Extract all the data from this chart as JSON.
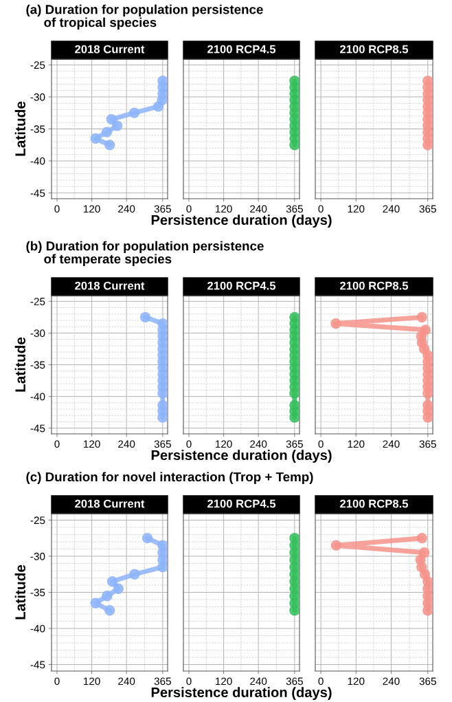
{
  "chart_data": [
    {
      "type": "line",
      "title": "2018 Current",
      "ylabel": "Latitude",
      "annotations": [
        "(a) Duration for population persistence\n     of tropical species"
      ],
      "xlim": [
        -19,
        382
      ],
      "ylim": [
        -45.9,
        -24.1
      ],
      "xticks": [
        0,
        120,
        240,
        365
      ],
      "yticks": [
        -25,
        -30,
        -35,
        -40,
        -45
      ],
      "grid": true,
      "marker": "circle",
      "line_style": "solid",
      "series": [
        {
          "color": "#8db4fa",
          "x": [
            365,
            365,
            365,
            363,
            350,
            267,
            188,
            208,
            172,
            133,
            182
          ],
          "values": [
            -27.5,
            -28.5,
            -29.5,
            -30.5,
            -31.5,
            -32.5,
            -33.5,
            -34.5,
            -35.5,
            -36.5,
            -37.5
          ]
        }
      ]
    },
    {
      "type": "line",
      "title": "2100 RCP4.5",
      "xlabel": "Persistence duration (days)",
      "xlim": [
        -19,
        382
      ],
      "ylim": [
        -45.9,
        -24.1
      ],
      "xticks": [
        0,
        120,
        240,
        365
      ],
      "yticks": [
        -25,
        -30,
        -35,
        -40,
        -45
      ],
      "tick_labels": "x",
      "grid": true,
      "marker": "circle",
      "line_style": "solid",
      "series": [
        {
          "color": "#35c05d",
          "x": [
            365,
            365,
            365,
            365,
            365,
            365,
            365,
            365,
            365,
            365,
            365
          ],
          "values": [
            -27.5,
            -28.5,
            -29.5,
            -30.5,
            -31.5,
            -32.5,
            -33.5,
            -34.5,
            -35.5,
            -36.5,
            -37.5
          ]
        }
      ]
    },
    {
      "type": "line",
      "title": "2100 RCP8.5",
      "xlim": [
        -19,
        382
      ],
      "ylim": [
        -45.9,
        -24.1
      ],
      "xticks": [
        0,
        120,
        240,
        365
      ],
      "yticks": [
        -25,
        -30,
        -35,
        -40,
        -45
      ],
      "tick_labels": "x",
      "grid": true,
      "marker": "circle",
      "line_style": "solid",
      "series": [
        {
          "color": "#f6938b",
          "x": [
            365,
            365,
            365,
            365,
            365,
            365,
            365,
            365,
            365,
            365,
            365
          ],
          "values": [
            -27.5,
            -28.5,
            -29.5,
            -30.5,
            -31.5,
            -32.5,
            -33.5,
            -34.5,
            -35.5,
            -36.5,
            -37.5
          ]
        }
      ]
    },
    {
      "type": "line",
      "title": "2018 Current",
      "ylabel": "Latitude",
      "annotations": [
        "(b) Duration for population persistence\n     of temperate species"
      ],
      "xlim": [
        -19,
        382
      ],
      "ylim": [
        -45.9,
        -24.1
      ],
      "xticks": [
        0,
        120,
        240,
        365
      ],
      "yticks": [
        -25,
        -30,
        -35,
        -40,
        -45
      ],
      "grid": true,
      "marker": "circle",
      "line_style": "solid",
      "series": [
        {
          "color": "#8db4fa",
          "x": [
            305,
            365,
            365,
            365,
            365,
            365,
            365,
            365,
            365,
            365,
            365,
            365,
            365,
            365,
            365,
            365
          ],
          "values": [
            -27.5,
            -28.5,
            -29.5,
            -30.5,
            -31.5,
            -32.5,
            -33.5,
            -34.5,
            -35.5,
            -36.5,
            -37.5,
            -38.5,
            -39.5,
            -41.4,
            -42.3,
            -43.3
          ]
        }
      ]
    },
    {
      "type": "line",
      "title": "2100 RCP4.5",
      "xlabel": "Persistence duration (days)",
      "xlim": [
        -19,
        382
      ],
      "ylim": [
        -45.9,
        -24.1
      ],
      "xticks": [
        0,
        120,
        240,
        365
      ],
      "yticks": [
        -25,
        -30,
        -35,
        -40,
        -45
      ],
      "tick_labels": "x",
      "grid": true,
      "marker": "circle",
      "line_style": "solid",
      "series": [
        {
          "color": "#35c05d",
          "x": [
            365,
            365,
            365,
            365,
            365,
            365,
            365,
            365,
            365,
            365,
            365,
            365,
            365,
            365,
            365,
            365
          ],
          "values": [
            -27.5,
            -28.5,
            -29.5,
            -30.5,
            -31.5,
            -32.5,
            -33.5,
            -34.5,
            -35.5,
            -36.5,
            -37.5,
            -38.5,
            -39.5,
            -41.4,
            -42.3,
            -43.3
          ]
        }
      ]
    },
    {
      "type": "line",
      "title": "2100 RCP8.5",
      "xlim": [
        -19,
        382
      ],
      "ylim": [
        -45.9,
        -24.1
      ],
      "xticks": [
        0,
        120,
        240,
        365
      ],
      "yticks": [
        -25,
        -30,
        -35,
        -40,
        -45
      ],
      "tick_labels": "x",
      "grid": true,
      "marker": "circle",
      "line_style": "solid",
      "series": [
        {
          "color": "#f6938b",
          "x": [
            345,
            51,
            357,
            343,
            345,
            353,
            365,
            365,
            365,
            365,
            365,
            365,
            365,
            365,
            365,
            365
          ],
          "values": [
            -27.5,
            -28.5,
            -29.5,
            -30.5,
            -31.5,
            -32.5,
            -33.5,
            -34.5,
            -35.5,
            -36.5,
            -37.5,
            -38.5,
            -39.5,
            -41.4,
            -42.3,
            -43.3
          ]
        }
      ]
    },
    {
      "type": "line",
      "title": "2018 Current",
      "ylabel": "Latitude",
      "annotations": [
        "(c) Duration for novel interaction (Trop + Temp)"
      ],
      "xlim": [
        -19,
        382
      ],
      "ylim": [
        -45.9,
        -24.1
      ],
      "xticks": [
        0,
        120,
        240,
        365
      ],
      "yticks": [
        -25,
        -30,
        -35,
        -40,
        -45
      ],
      "grid": true,
      "marker": "circle",
      "line_style": "solid",
      "series": [
        {
          "color": "#8db4fa",
          "x": [
            312,
            365,
            365,
            365,
            365,
            268,
            191,
            212,
            173,
            133,
            182
          ],
          "values": [
            -27.5,
            -28.5,
            -29.5,
            -30.5,
            -31.5,
            -32.5,
            -33.5,
            -34.5,
            -35.5,
            -36.5,
            -37.5
          ]
        }
      ]
    },
    {
      "type": "line",
      "title": "2100 RCP4.5",
      "xlabel": "Persistence duration (days)",
      "xlim": [
        -19,
        382
      ],
      "ylim": [
        -45.9,
        -24.1
      ],
      "xticks": [
        0,
        120,
        240,
        365
      ],
      "yticks": [
        -25,
        -30,
        -35,
        -40,
        -45
      ],
      "tick_labels": "x",
      "grid": true,
      "marker": "circle",
      "line_style": "solid",
      "series": [
        {
          "color": "#35c05d",
          "x": [
            365,
            365,
            365,
            365,
            365,
            365,
            365,
            365,
            365,
            365,
            365
          ],
          "values": [
            -27.5,
            -28.5,
            -29.5,
            -30.5,
            -31.5,
            -32.5,
            -33.5,
            -34.5,
            -35.5,
            -36.5,
            -37.5
          ]
        }
      ]
    },
    {
      "type": "line",
      "title": "2100 RCP8.5",
      "xlim": [
        -19,
        382
      ],
      "ylim": [
        -45.9,
        -24.1
      ],
      "xticks": [
        0,
        120,
        240,
        365
      ],
      "yticks": [
        -25,
        -30,
        -35,
        -40,
        -45
      ],
      "tick_labels": "x",
      "grid": true,
      "marker": "circle",
      "line_style": "solid",
      "series": [
        {
          "color": "#f6938b",
          "x": [
            345,
            52,
            353,
            340,
            344,
            355,
            365,
            365,
            365,
            365,
            365
          ],
          "values": [
            -27.5,
            -28.5,
            -29.5,
            -30.5,
            -31.5,
            -32.5,
            -33.5,
            -34.5,
            -35.5,
            -36.5,
            -37.5
          ]
        }
      ]
    }
  ]
}
